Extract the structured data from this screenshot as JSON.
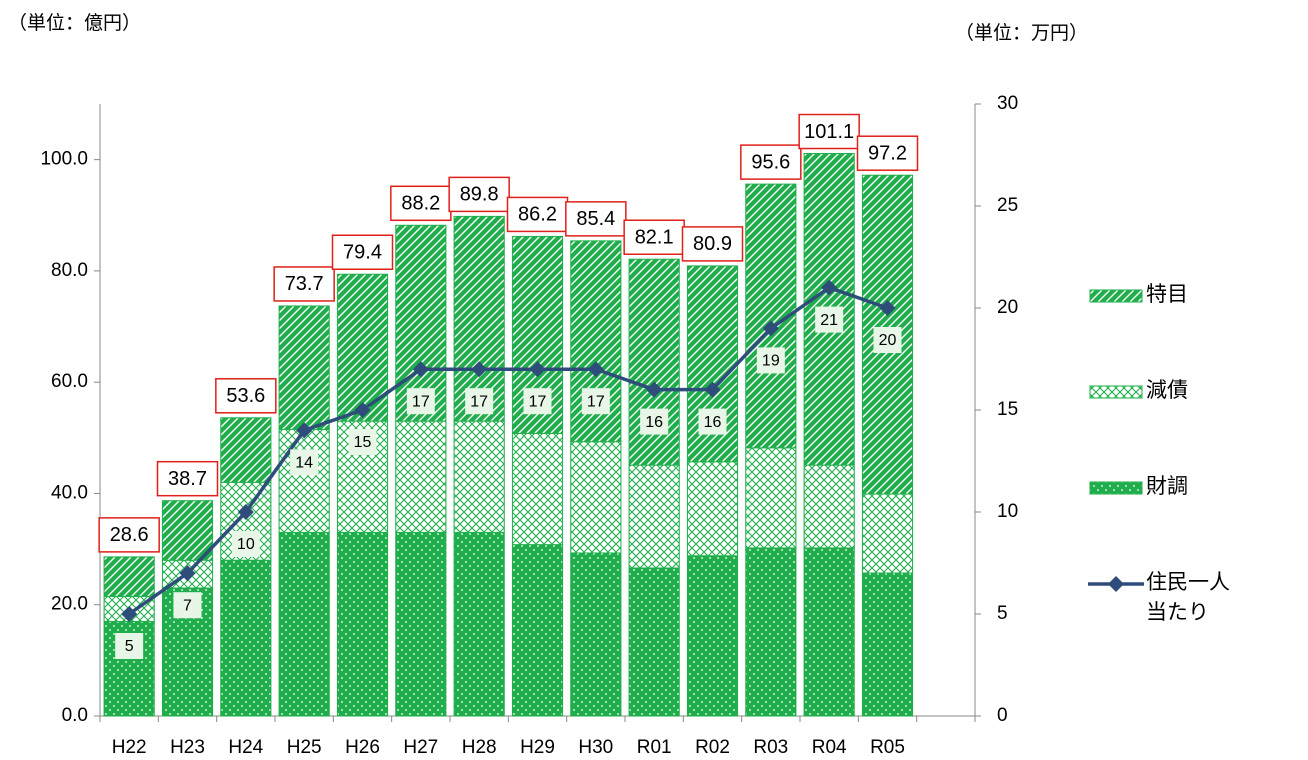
{
  "chart_data": {
    "type": "bar",
    "unit_left": "（単位：億円）",
    "unit_right": "（単位：万円）",
    "categories": [
      "H22",
      "H23",
      "H24",
      "H25",
      "H26",
      "H27",
      "H28",
      "H29",
      "H30",
      "R01",
      "R02",
      "R03",
      "R04",
      "R05",
      null
    ],
    "series": [
      {
        "name": "財調",
        "color": "#1fae4b",
        "pattern": "dots",
        "values": [
          17.0,
          23.0,
          28.0,
          33.0,
          33.0,
          33.0,
          33.0,
          30.8,
          29.3,
          26.6,
          28.8,
          30.2,
          30.2,
          25.7,
          null
        ]
      },
      {
        "name": "減債",
        "color": "#1fae4b",
        "pattern": "cross",
        "values": [
          4.5,
          5.0,
          14.0,
          18.5,
          20.0,
          20.0,
          20.0,
          20.0,
          20.0,
          18.5,
          16.9,
          18.0,
          14.9,
          14.2,
          null
        ]
      },
      {
        "name": "特目",
        "color": "#1fae4b",
        "pattern": "diagonal",
        "values": [
          7.1,
          10.7,
          11.6,
          22.2,
          26.4,
          35.2,
          36.8,
          35.4,
          36.1,
          37.0,
          35.2,
          47.4,
          56.0,
          57.3,
          null
        ]
      },
      {
        "name": "住民一人当たり",
        "color": "#2e4d7b",
        "type": "line",
        "axis": "y2",
        "values": [
          5,
          7,
          10,
          14,
          15,
          17,
          17,
          17,
          17,
          16,
          16,
          19,
          21,
          20,
          null
        ]
      }
    ],
    "totals": [
      28.6,
      38.7,
      53.6,
      73.7,
      79.4,
      88.2,
      89.8,
      86.2,
      85.4,
      82.1,
      80.9,
      95.6,
      101.1,
      97.2,
      null
    ],
    "ylim": [
      0,
      110
    ],
    "yticks": [
      {
        "value": 0,
        "label": "0.0"
      },
      {
        "value": 20,
        "label": "20.0"
      },
      {
        "value": 40,
        "label": "40.0"
      },
      {
        "value": 60,
        "label": "60.0"
      },
      {
        "value": 80,
        "label": "80.0"
      },
      {
        "value": 100,
        "label": "100.0"
      }
    ],
    "y2lim": [
      0,
      30
    ],
    "y2ticks": [
      0,
      5,
      10,
      15,
      20,
      25,
      30
    ],
    "legend": "right"
  }
}
